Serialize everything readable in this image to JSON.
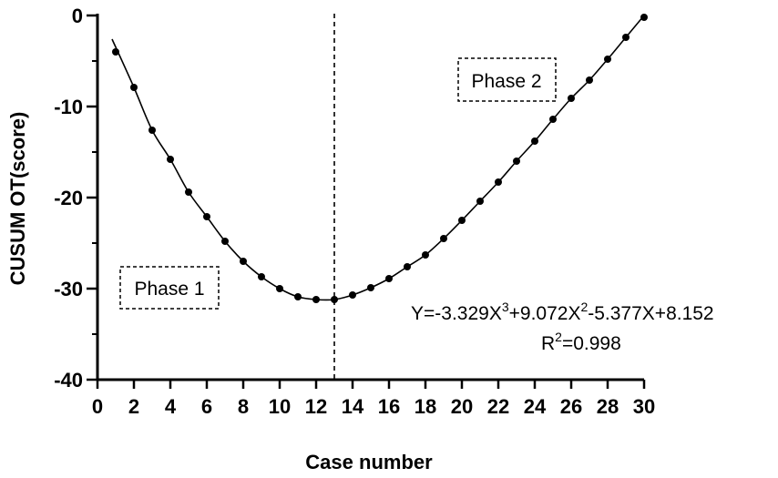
{
  "chart_data": {
    "type": "scatter",
    "xlabel": "Case number",
    "ylabel": "CUSUM OT(score)",
    "xlim": [
      0,
      30
    ],
    "ylim": [
      -40,
      0
    ],
    "x_ticks": [
      "0",
      "2",
      "4",
      "6",
      "8",
      "10",
      "12",
      "14",
      "16",
      "18",
      "20",
      "22",
      "24",
      "26",
      "28",
      "30"
    ],
    "y_ticks": [
      "0",
      "-10",
      "-20",
      "-30",
      "-40"
    ],
    "grid": false,
    "series": [
      {
        "x": [
          1,
          2,
          3,
          4,
          5,
          6,
          7,
          8,
          9,
          10,
          11,
          12,
          13,
          14,
          15,
          16,
          17,
          18,
          19,
          20,
          21,
          22,
          23,
          24,
          25,
          26,
          27,
          28,
          29,
          30
        ],
        "values": [
          -4.0,
          -7.9,
          -12.6,
          -15.8,
          -19.4,
          -22.1,
          -24.8,
          -27.0,
          -28.7,
          -30.0,
          -30.9,
          -31.2,
          -31.2,
          -30.7,
          -29.9,
          -28.9,
          -27.6,
          -26.3,
          -24.5,
          -22.5,
          -20.4,
          -18.3,
          -16.0,
          -13.8,
          -11.4,
          -9.1,
          -7.1,
          -4.8,
          -2.4,
          -0.2
        ]
      }
    ],
    "vertical_line_x": 13,
    "annotations": {
      "phase1": "Phase 1",
      "phase2": "Phase 2",
      "equation_parts": [
        "Y=-3.329X",
        "3",
        "+9.072X",
        "2",
        "-5.377X+8.152"
      ],
      "r2_parts": [
        "R",
        "2",
        "=0.998"
      ]
    }
  }
}
